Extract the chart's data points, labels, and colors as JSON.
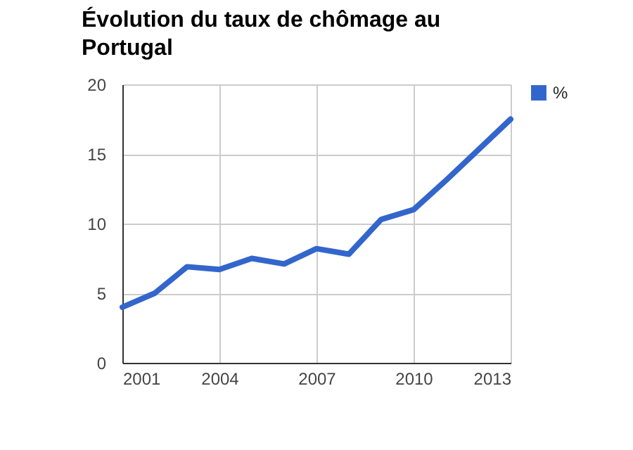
{
  "chart_data": {
    "type": "line",
    "title": "Évolution du taux de chômage au Portugal",
    "x": [
      2001,
      2002,
      2003,
      2004,
      2005,
      2006,
      2007,
      2008,
      2009,
      2010,
      2011,
      2012,
      2013
    ],
    "series": [
      {
        "name": "%",
        "color": "#3366cc",
        "values": [
          4.0,
          5.0,
          6.9,
          6.7,
          7.5,
          7.1,
          8.2,
          7.8,
          10.3,
          11.0,
          13.1,
          15.3,
          17.5
        ]
      }
    ],
    "xlim": [
      2001,
      2013
    ],
    "xticks": [
      2001,
      2004,
      2007,
      2010,
      2013
    ],
    "ylim": [
      0,
      20
    ],
    "yticks": [
      0,
      5,
      10,
      15,
      20
    ],
    "grid": true,
    "legend": "top right",
    "marker": "none",
    "line_style": "solid"
  }
}
